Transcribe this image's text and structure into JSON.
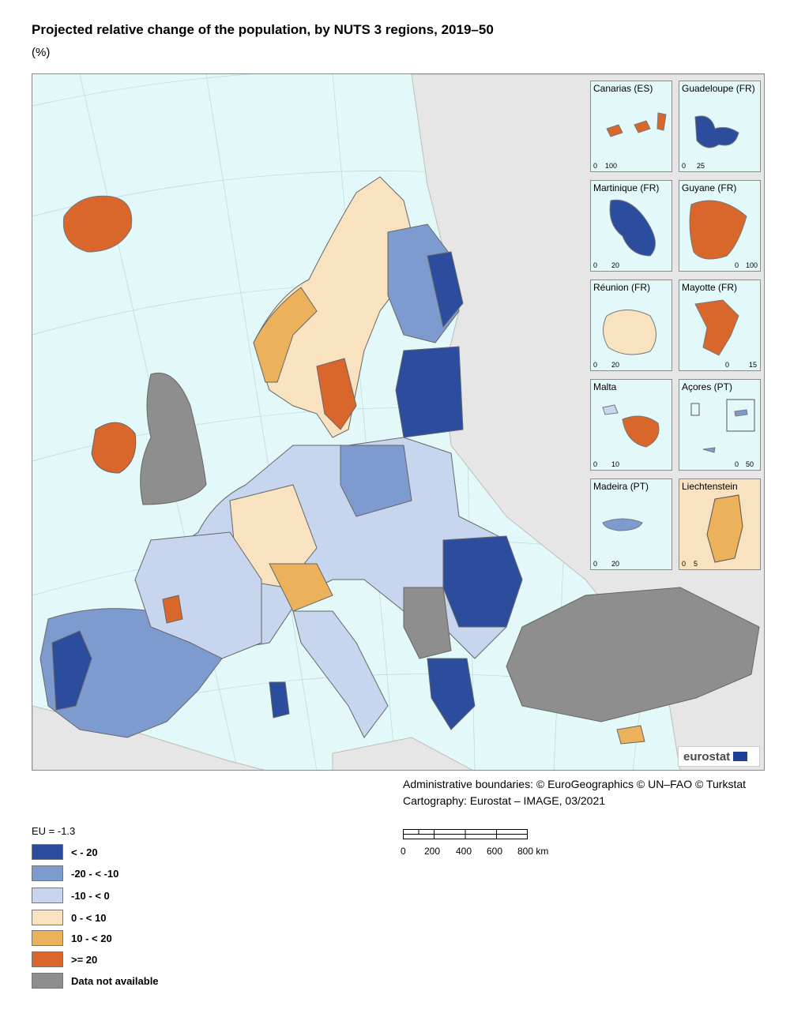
{
  "title": "Projected relative change of the population, by NUTS 3 regions, 2019–50",
  "subtitle": "(%)",
  "colors": {
    "c1": "#2c4c9e",
    "c2": "#7e9bd0",
    "c3": "#c7d6ee",
    "c4": "#f9e2c0",
    "c5": "#ebb25b",
    "c6": "#d9672b",
    "na": "#8e8e8e",
    "sea": "#e3f8f9",
    "land_other": "#e6e6e6"
  },
  "insets": [
    {
      "label": "Canarias (ES)",
      "scale_labels": [
        "0",
        "100"
      ]
    },
    {
      "label": "Guadeloupe (FR)",
      "scale_labels": [
        "0",
        "25"
      ]
    },
    {
      "label": "Martinique (FR)",
      "scale_labels": [
        "0",
        "20"
      ]
    },
    {
      "label": "Guyane (FR)",
      "scale_labels": [
        "0",
        "100"
      ]
    },
    {
      "label": "Réunion (FR)",
      "scale_labels": [
        "0",
        "20"
      ]
    },
    {
      "label": "Mayotte (FR)",
      "scale_labels": [
        "0",
        "15"
      ]
    },
    {
      "label": "Malta",
      "scale_labels": [
        "0",
        "10"
      ]
    },
    {
      "label": "Açores (PT)",
      "scale_labels": [
        "0",
        "50"
      ]
    },
    {
      "label": "Madeira (PT)",
      "scale_labels": [
        "0",
        "20"
      ]
    },
    {
      "label": "Liechtenstein",
      "scale_labels": [
        "0",
        "5"
      ]
    }
  ],
  "logo": {
    "text": "eurostat"
  },
  "credits": [
    "Administrative boundaries: © EuroGeographics © UN–FAO © Turkstat",
    "Cartography: Eurostat – IMAGE, 03/2021"
  ],
  "legend": {
    "title": "EU = -1.3",
    "items": [
      {
        "label": "< - 20",
        "color": "#2c4c9e"
      },
      {
        "label": "-20 - < -10",
        "color": "#7e9bd0"
      },
      {
        "label": "-10 - < 0",
        "color": "#c7d6ee"
      },
      {
        "label": "0 - < 10",
        "color": "#f9e2c0"
      },
      {
        "label": "10 - < 20",
        "color": "#ebb25b"
      },
      {
        "label": ">= 20",
        "color": "#d9672b"
      },
      {
        "label": "Data not available",
        "color": "#8e8e8e"
      }
    ]
  },
  "scale": {
    "labels": [
      "0",
      "200",
      "400",
      "600",
      "800 km"
    ]
  }
}
